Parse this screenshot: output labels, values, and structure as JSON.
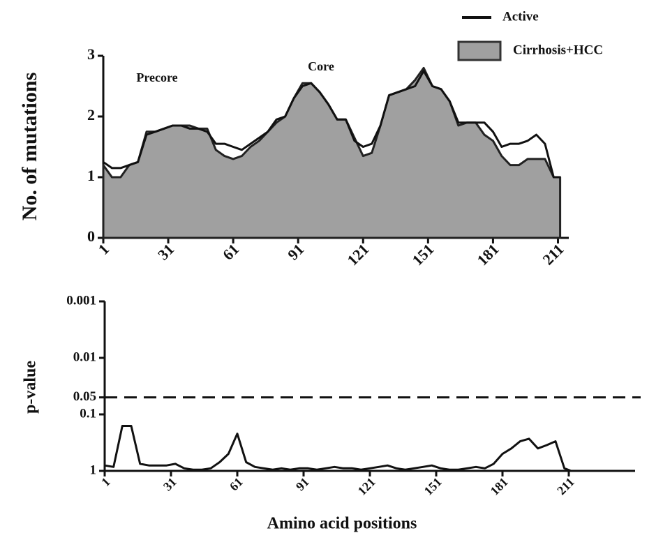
{
  "chart_data": [
    {
      "type": "line",
      "ylabel": "No. of mutations",
      "annotations": [
        "Precore",
        "Core"
      ],
      "legend": "top-right",
      "x": [
        1,
        5,
        9,
        13,
        17,
        21,
        25,
        29,
        33,
        37,
        41,
        45,
        49,
        53,
        57,
        61,
        65,
        69,
        73,
        77,
        81,
        85,
        89,
        93,
        97,
        101,
        105,
        109,
        113,
        117,
        121,
        125,
        129,
        133,
        137,
        141,
        145,
        149,
        153,
        157,
        161,
        165,
        169,
        173,
        177,
        181,
        185,
        189,
        193,
        197,
        201,
        205,
        209,
        212
      ],
      "series": [
        {
          "name": "Active",
          "color": "#111111",
          "kind": "line",
          "values": [
            1.25,
            1.15,
            1.15,
            1.2,
            1.25,
            1.7,
            1.75,
            1.8,
            1.85,
            1.85,
            1.8,
            1.8,
            1.75,
            1.55,
            1.55,
            1.5,
            1.45,
            1.55,
            1.65,
            1.75,
            1.95,
            2.0,
            2.3,
            2.5,
            2.55,
            2.4,
            2.2,
            1.95,
            1.95,
            1.6,
            1.5,
            1.55,
            1.85,
            2.35,
            2.4,
            2.45,
            2.5,
            2.75,
            2.5,
            2.45,
            2.25,
            1.9,
            1.9,
            1.9,
            1.9,
            1.75,
            1.5,
            1.55,
            1.55,
            1.6,
            1.7,
            1.55,
            1.0,
            1.0
          ]
        },
        {
          "name": "Cirrhosis+HCC",
          "color": "#a0a0a0",
          "kind": "area",
          "values": [
            1.2,
            1.0,
            1.0,
            1.2,
            1.25,
            1.75,
            1.75,
            1.8,
            1.85,
            1.85,
            1.85,
            1.8,
            1.8,
            1.45,
            1.35,
            1.3,
            1.35,
            1.5,
            1.6,
            1.75,
            1.9,
            2.0,
            2.3,
            2.55,
            2.55,
            2.4,
            2.2,
            1.95,
            1.95,
            1.65,
            1.35,
            1.4,
            1.85,
            2.35,
            2.4,
            2.45,
            2.6,
            2.8,
            2.5,
            2.45,
            2.25,
            1.85,
            1.9,
            1.9,
            1.7,
            1.6,
            1.35,
            1.2,
            1.2,
            1.3,
            1.3,
            1.3,
            1.0,
            1.0
          ]
        }
      ],
      "xlim": [
        1,
        216
      ],
      "xticks": [
        1,
        31,
        61,
        91,
        121,
        151,
        181,
        211
      ],
      "ylim": [
        0,
        3
      ],
      "yticks": [
        0,
        1,
        2,
        3
      ]
    },
    {
      "type": "line",
      "ylabel": "p-value",
      "xlabel": "Amino acid positions",
      "yscale": "log",
      "reference_line": 0.05,
      "x": [
        1,
        5,
        9,
        13,
        17,
        21,
        25,
        29,
        33,
        37,
        41,
        45,
        49,
        53,
        57,
        61,
        65,
        69,
        73,
        77,
        81,
        85,
        89,
        93,
        97,
        101,
        105,
        109,
        113,
        117,
        121,
        125,
        129,
        133,
        137,
        141,
        145,
        149,
        153,
        157,
        161,
        165,
        169,
        173,
        177,
        181,
        185,
        189,
        193,
        197,
        201,
        205,
        209,
        212
      ],
      "series": [
        {
          "color": "#111111",
          "values": [
            0.8,
            0.85,
            0.16,
            0.16,
            0.75,
            0.8,
            0.8,
            0.8,
            0.75,
            0.9,
            0.95,
            0.95,
            0.9,
            0.7,
            0.5,
            0.22,
            0.7,
            0.85,
            0.9,
            0.95,
            0.9,
            0.95,
            0.9,
            0.9,
            0.95,
            0.9,
            0.85,
            0.9,
            0.9,
            0.95,
            0.9,
            0.85,
            0.8,
            0.9,
            0.95,
            0.9,
            0.85,
            0.8,
            0.9,
            0.95,
            0.95,
            0.9,
            0.85,
            0.9,
            0.75,
            0.5,
            0.4,
            0.3,
            0.27,
            0.4,
            0.35,
            0.3,
            0.9,
            1
          ]
        }
      ],
      "xlim": [
        1,
        241
      ],
      "xticks": [
        1,
        31,
        61,
        91,
        121,
        151,
        181,
        211
      ],
      "ylim": [
        1,
        0.001
      ],
      "yticks": [
        1,
        0.1,
        0.05,
        0.01,
        0.001
      ]
    }
  ]
}
